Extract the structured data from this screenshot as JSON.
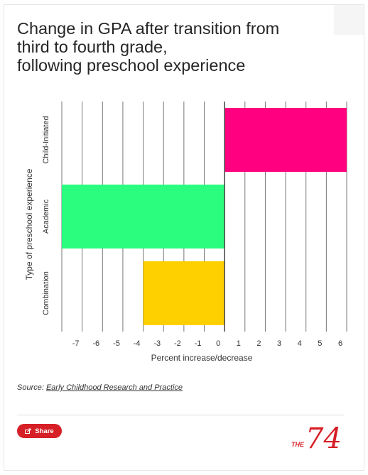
{
  "title": "Change in GPA after transition from\nthird to fourth grade,\nfollowing preschool experience",
  "source": {
    "prefix": "Source: ",
    "link_text": "Early Childhood Research and Practice"
  },
  "share_label": "Share",
  "brand": {
    "small": "THE",
    "large": "74",
    "color": "#d61f26"
  },
  "chart_data": {
    "type": "bar",
    "orientation": "horizontal",
    "xlabel": "Percent increase/decrease",
    "ylabel": "Type of preschool experience",
    "categories": [
      "Child-Initiated",
      "Academic",
      "Combination"
    ],
    "values": [
      6.0,
      -8.0,
      -4.0
    ],
    "colors": [
      "#ff0080",
      "#2bfd7f",
      "#ffd000"
    ],
    "xlim": [
      -8,
      6
    ],
    "xticks": [
      -7,
      -6,
      -5,
      -4,
      -3,
      -2,
      -1,
      0,
      1,
      2,
      3,
      4,
      5,
      6
    ],
    "grid": true,
    "legend": "none"
  }
}
